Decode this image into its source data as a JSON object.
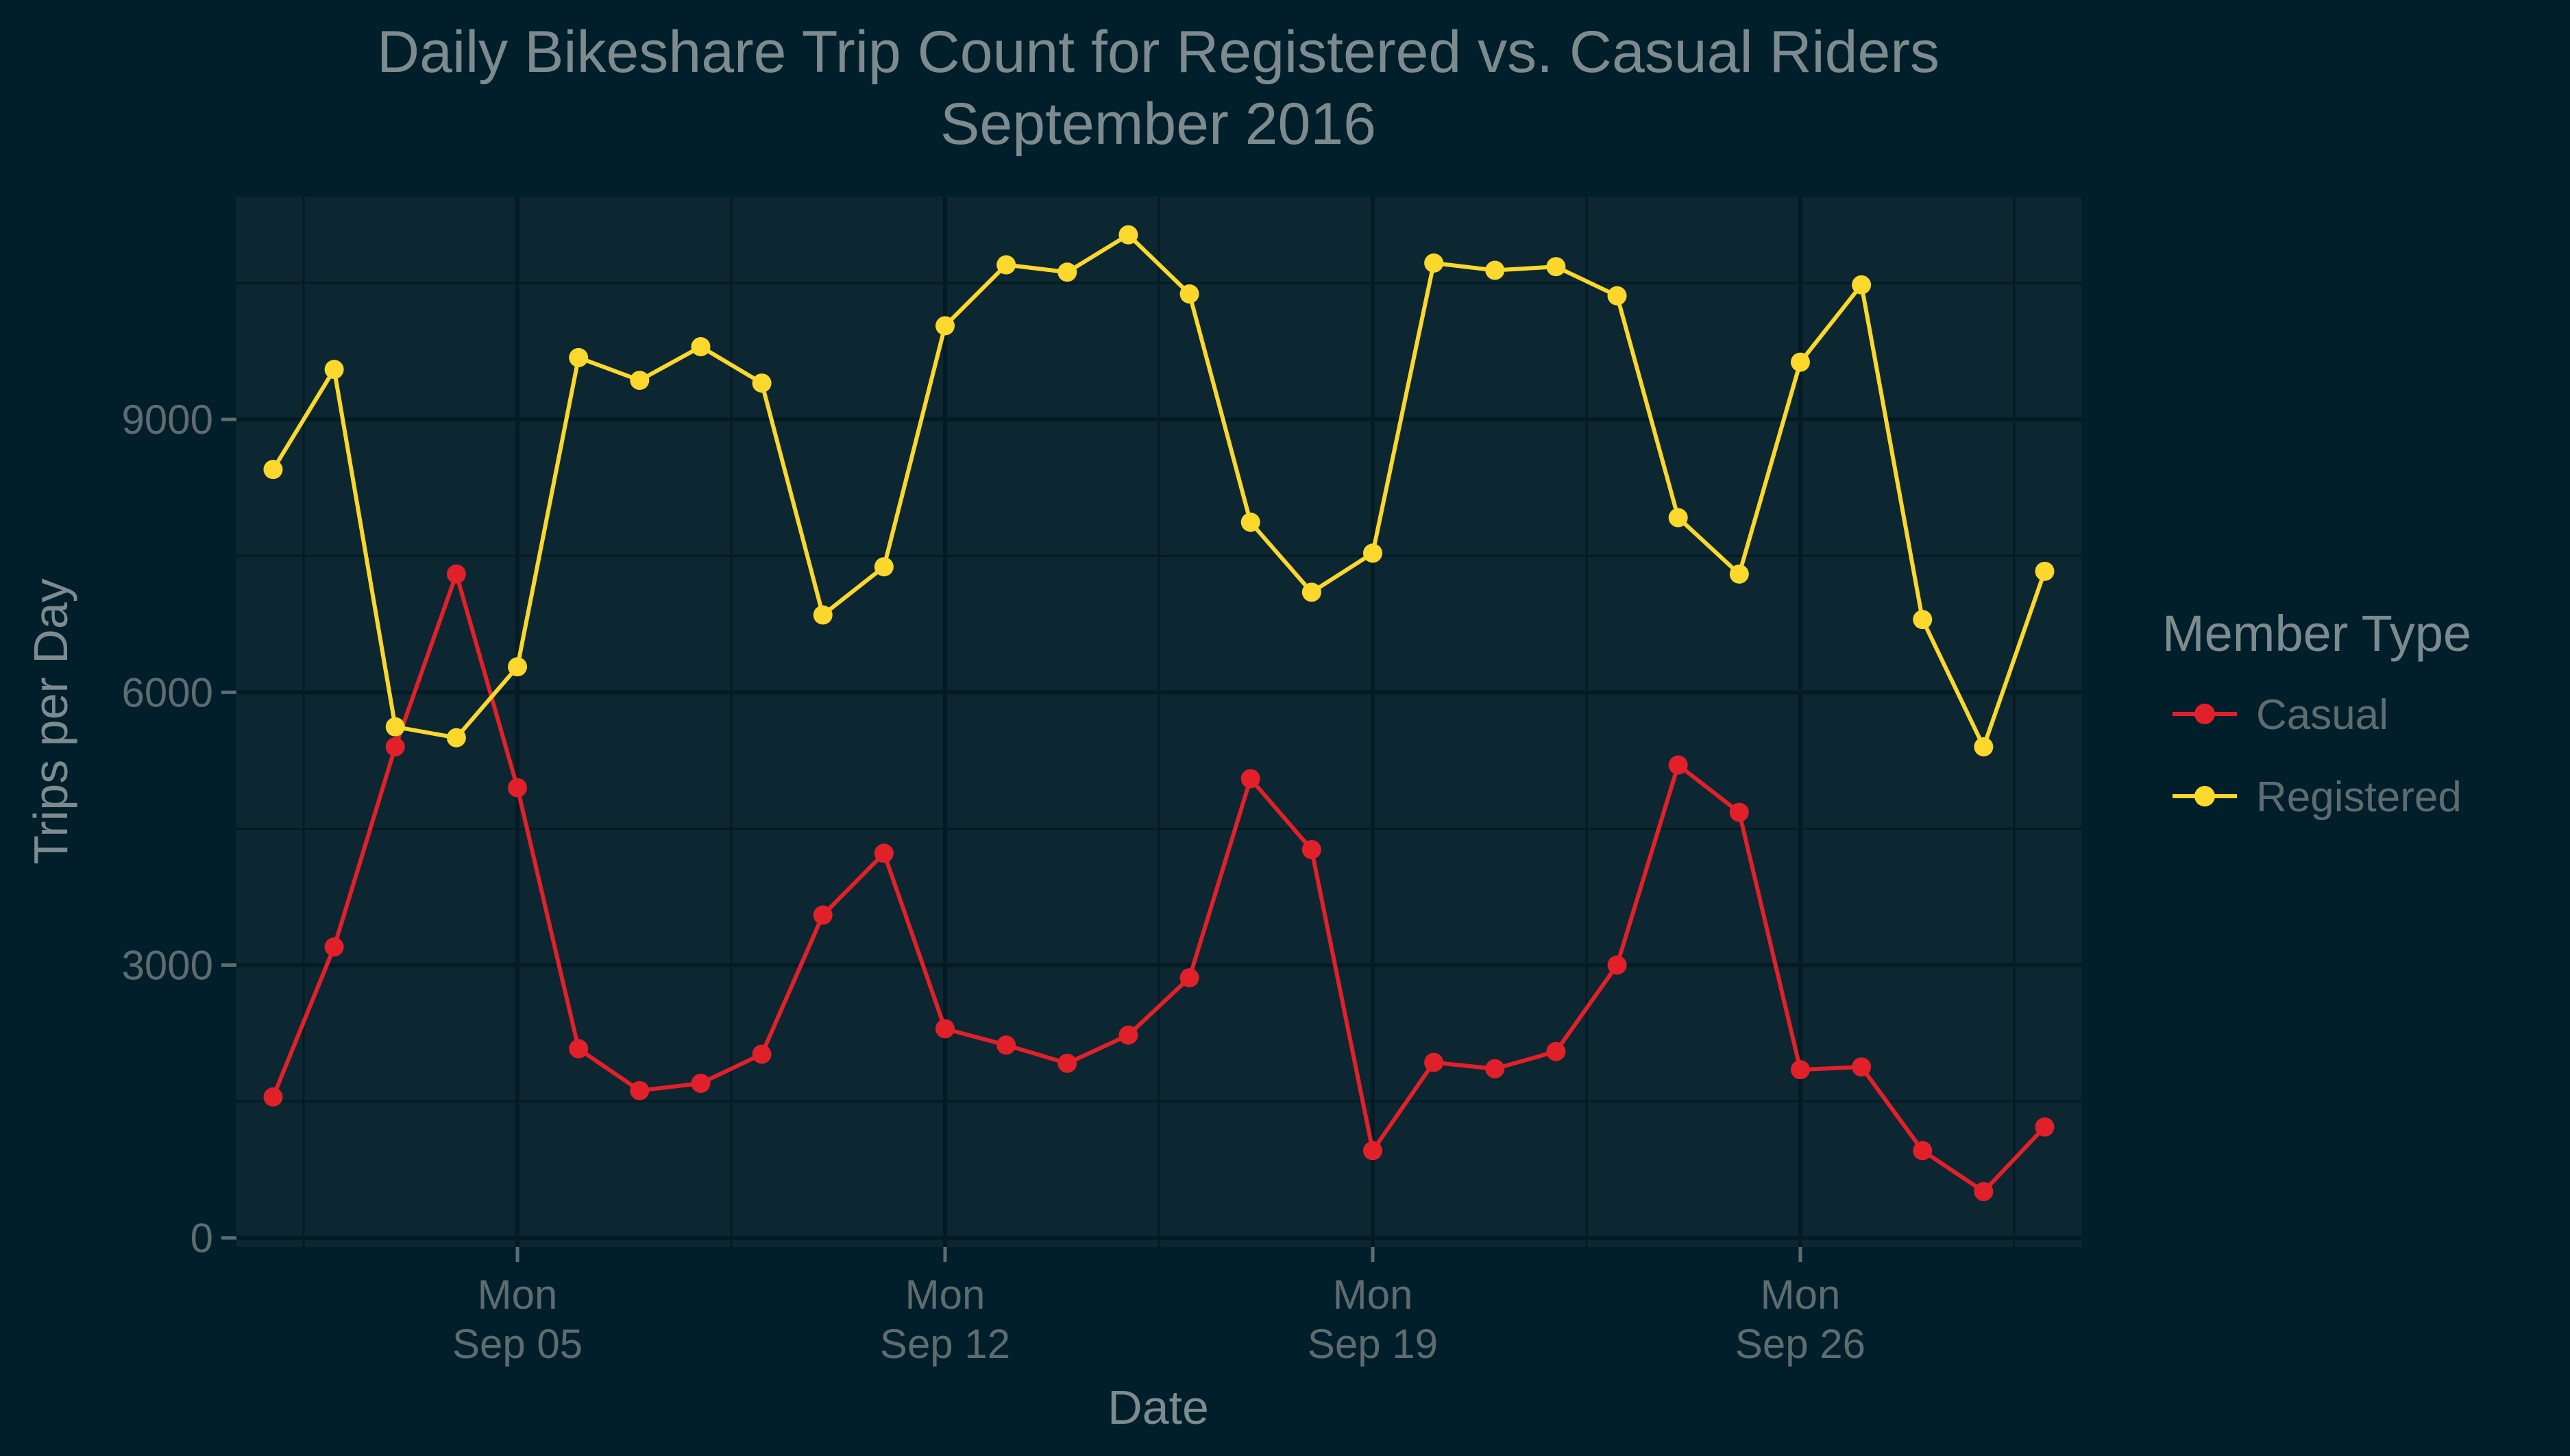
{
  "chart_data": {
    "type": "line",
    "title": "Daily Bikeshare Trip Count for Registered vs. Casual Riders",
    "subtitle": "September 2016",
    "xlabel": "Date",
    "ylabel": "Trips per Day",
    "x": [
      "2016-09-01",
      "2016-09-02",
      "2016-09-03",
      "2016-09-04",
      "2016-09-05",
      "2016-09-06",
      "2016-09-07",
      "2016-09-08",
      "2016-09-09",
      "2016-09-10",
      "2016-09-11",
      "2016-09-12",
      "2016-09-13",
      "2016-09-14",
      "2016-09-15",
      "2016-09-16",
      "2016-09-17",
      "2016-09-18",
      "2016-09-19",
      "2016-09-20",
      "2016-09-21",
      "2016-09-22",
      "2016-09-23",
      "2016-09-24",
      "2016-09-25",
      "2016-09-26",
      "2016-09-27",
      "2016-09-28",
      "2016-09-29",
      "2016-09-30"
    ],
    "x_ticks": [
      {
        "date": "2016-09-05",
        "line1": "Mon",
        "line2": "Sep 05"
      },
      {
        "date": "2016-09-12",
        "line1": "Mon",
        "line2": "Sep 12"
      },
      {
        "date": "2016-09-19",
        "line1": "Mon",
        "line2": "Sep 19"
      },
      {
        "date": "2016-09-26",
        "line1": "Mon",
        "line2": "Sep 26"
      }
    ],
    "y_ticks": [
      0,
      3000,
      6000,
      9000
    ],
    "ylim": [
      -100,
      11450
    ],
    "grid": true,
    "legend": {
      "title": "Member Type",
      "position": "right"
    },
    "series": [
      {
        "name": "Casual",
        "color": "#e2202a",
        "values": [
          1550,
          3200,
          5400,
          7300,
          4950,
          2080,
          1620,
          1700,
          2020,
          3550,
          4230,
          2300,
          2120,
          1920,
          2230,
          2860,
          5050,
          4270,
          960,
          1930,
          1860,
          2050,
          3000,
          5200,
          4680,
          1850,
          1880,
          960,
          510,
          1220
        ]
      },
      {
        "name": "Registered",
        "color": "#fcd72c",
        "values": [
          8450,
          9550,
          5620,
          5500,
          6280,
          9680,
          9430,
          9800,
          9400,
          6850,
          7380,
          10030,
          10700,
          10620,
          11030,
          10380,
          7870,
          7100,
          7530,
          10720,
          10640,
          10680,
          10360,
          7920,
          7300,
          9630,
          10480,
          6800,
          5400,
          7330
        ]
      }
    ]
  }
}
